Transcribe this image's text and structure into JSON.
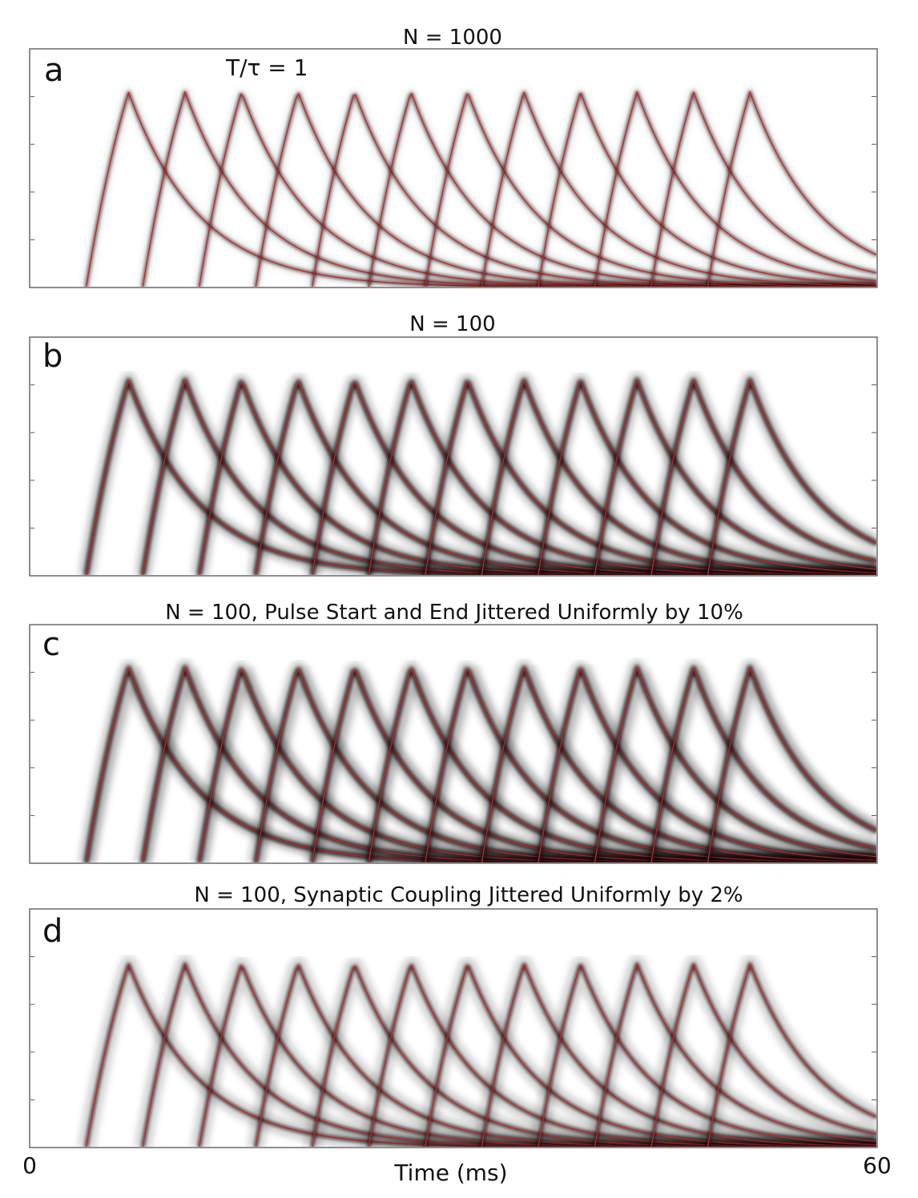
{
  "chart_data": [
    {
      "type": "line",
      "panel_label": "a",
      "title": "N = 1000",
      "annotation": "T/τ = 1",
      "N": 1000,
      "jitter_style": "none",
      "pulse_count": 12,
      "pulse_onsets_ms": [
        4,
        8,
        12,
        16,
        20,
        24,
        28,
        32,
        36,
        40,
        44,
        48
      ],
      "peak_value_fraction": 0.82,
      "xlim": [
        0,
        60
      ],
      "xlabel": "",
      "ylabel": "",
      "series": [
        {
          "name": "simulated population density",
          "color": "#000000"
        },
        {
          "name": "theoretical trace",
          "color": "#d62020"
        }
      ]
    },
    {
      "type": "line",
      "panel_label": "b",
      "title": "N = 100",
      "N": 100,
      "jitter_style": "none",
      "pulse_count": 12,
      "pulse_onsets_ms": [
        4,
        8,
        12,
        16,
        20,
        24,
        28,
        32,
        36,
        40,
        44,
        48
      ],
      "peak_value_fraction": 0.82,
      "xlim": [
        0,
        60
      ],
      "xlabel": "",
      "ylabel": "",
      "series": [
        {
          "name": "simulated population density",
          "color": "#000000"
        },
        {
          "name": "theoretical trace",
          "color": "#d62020"
        }
      ]
    },
    {
      "type": "line",
      "panel_label": "c",
      "title": "N = 100, Pulse Start and End Jittered Uniformly by 10%",
      "N": 100,
      "jitter_style": "timing",
      "jitter_percent": 10,
      "pulse_count": 12,
      "pulse_onsets_ms": [
        4,
        8,
        12,
        16,
        20,
        24,
        28,
        32,
        36,
        40,
        44,
        48
      ],
      "peak_value_fraction": 0.82,
      "xlim": [
        0,
        60
      ],
      "xlabel": "",
      "ylabel": "",
      "series": [
        {
          "name": "simulated population density",
          "color": "#000000"
        },
        {
          "name": "theoretical trace",
          "color": "#d62020"
        }
      ]
    },
    {
      "type": "line",
      "panel_label": "d",
      "title": "N = 100, Synaptic Coupling Jittered Uniformly by 2%",
      "N": 100,
      "jitter_style": "coupling",
      "jitter_percent": 2,
      "pulse_count": 12,
      "pulse_onsets_ms": [
        4,
        8,
        12,
        16,
        20,
        24,
        28,
        32,
        36,
        40,
        44,
        48
      ],
      "peak_value_fraction": 0.77,
      "xlim": [
        0,
        60
      ],
      "xlabel": "Time (ms)",
      "ylabel": "",
      "xtick_labels": [
        "0",
        "60"
      ],
      "series": [
        {
          "name": "simulated population density",
          "color": "#000000"
        },
        {
          "name": "theoretical trace",
          "color": "#d62020"
        }
      ]
    }
  ]
}
